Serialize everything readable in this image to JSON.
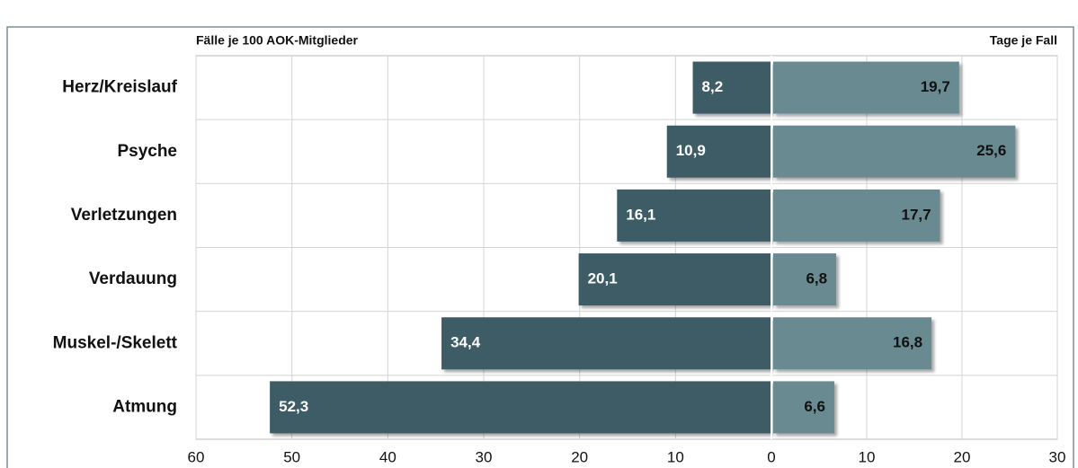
{
  "chart_data": {
    "type": "diverging-bar",
    "categories": [
      "Herz/Kreislauf",
      "Psyche",
      "Verletzungen",
      "Verdauung",
      "Muskel-/Skelett",
      "Atmung"
    ],
    "series": [
      {
        "name": "Fälle je 100 AOK-Mitglieder",
        "color": "#3d5c65",
        "values": [
          8.2,
          10.9,
          16.1,
          20.1,
          34.4,
          52.3
        ],
        "value_labels": [
          "8,2",
          "10,9",
          "16,1",
          "20,1",
          "34,4",
          "52,3"
        ]
      },
      {
        "name": "Tage je Fall",
        "color": "#6a8a92",
        "axis": "x2",
        "values": [
          19.7,
          25.6,
          17.7,
          6.8,
          16.8,
          6.6
        ],
        "value_labels": [
          "19,7",
          "25,6",
          "17,7",
          "6,8",
          "16,8",
          "6,6"
        ]
      }
    ],
    "xlim": [
      0,
      60
    ],
    "xticks": [
      60,
      50,
      40,
      30,
      20,
      10,
      0
    ],
    "x2lim": [
      0,
      30
    ],
    "x2ticks": [
      10,
      20,
      30
    ],
    "grid": true
  }
}
